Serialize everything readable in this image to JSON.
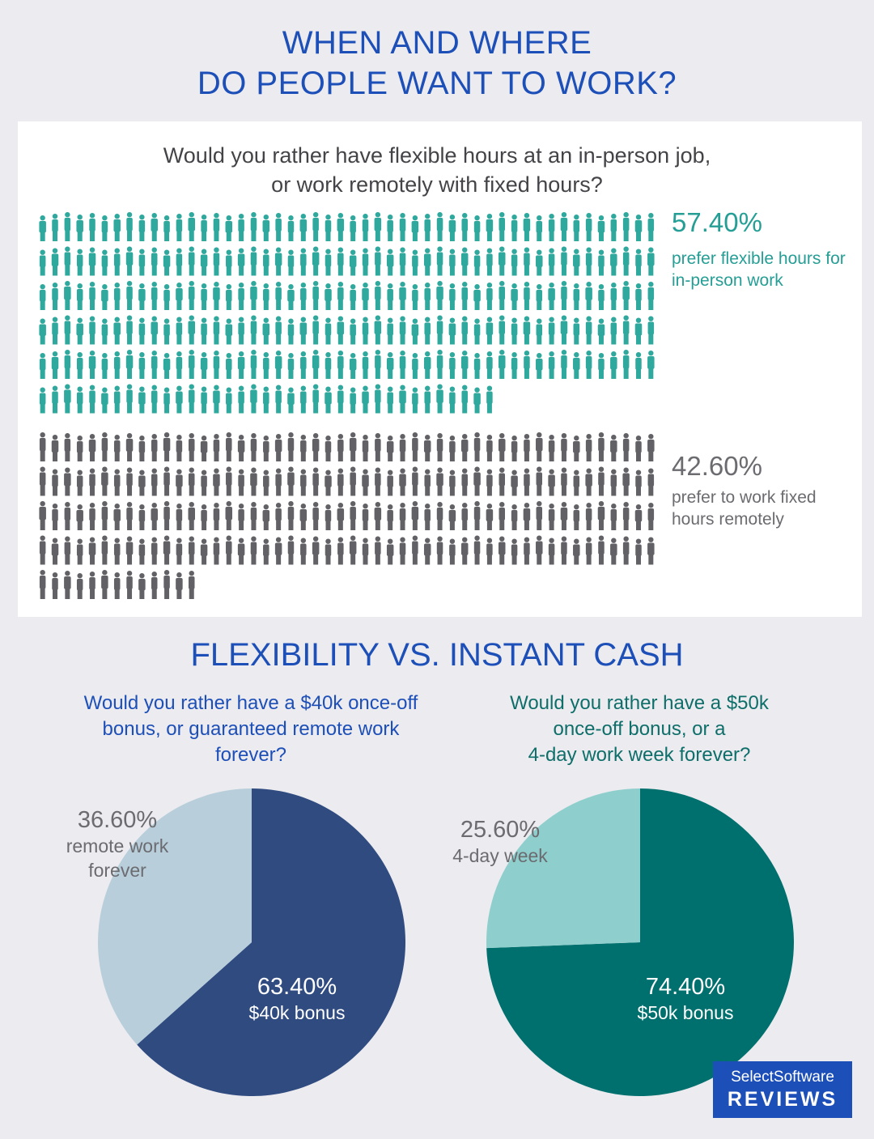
{
  "header": {
    "title_line1": "WHEN AND WHERE",
    "title_line2": "DO PEOPLE WANT TO WORK?"
  },
  "section1": {
    "question_line1": "Would you rather have flexible hours at an in-person job,",
    "question_line2": "or work remotely with fixed hours?",
    "teal_color": "#2fa89e",
    "gray_color": "#626266"
  },
  "section2": {
    "title": "FLEXIBILITY VS. INSTANT CASH",
    "left_question": [
      "Would you rather have a $40k once-off",
      "bonus, or guaranteed remote work",
      "forever?"
    ],
    "right_question": [
      "Would you rather have a $50k",
      "once-off bonus, or a",
      "4-day work week forever?"
    ]
  },
  "logo": {
    "line1": "SelectSoftware",
    "line2": "REVIEWS"
  },
  "chart_data": [
    {
      "type": "bar",
      "title": "",
      "categories": [
        "prefer flexible hours for in-person work",
        "prefer to work fixed hours remotely"
      ],
      "values": [
        57.4,
        42.6
      ],
      "labels": [
        "57.40%",
        "42.60%"
      ],
      "colors": [
        "#2fa89e",
        "#626266"
      ]
    },
    {
      "type": "pie",
      "title": "",
      "slices": [
        {
          "label": "$40k  bonus",
          "value": 63.4,
          "display": "63.40%",
          "color": "#2f4b80"
        },
        {
          "label": "remote work forever",
          "value": 36.6,
          "display": "36.60%",
          "color": "#b8cfdb"
        }
      ]
    },
    {
      "type": "pie",
      "title": "",
      "slices": [
        {
          "label": "$50k  bonus",
          "value": 74.4,
          "display": "74.40%",
          "color": "#00706e"
        },
        {
          "label": "4-day week",
          "value": 25.6,
          "display": "25.60%",
          "color": "#8ecfcd"
        }
      ]
    }
  ]
}
